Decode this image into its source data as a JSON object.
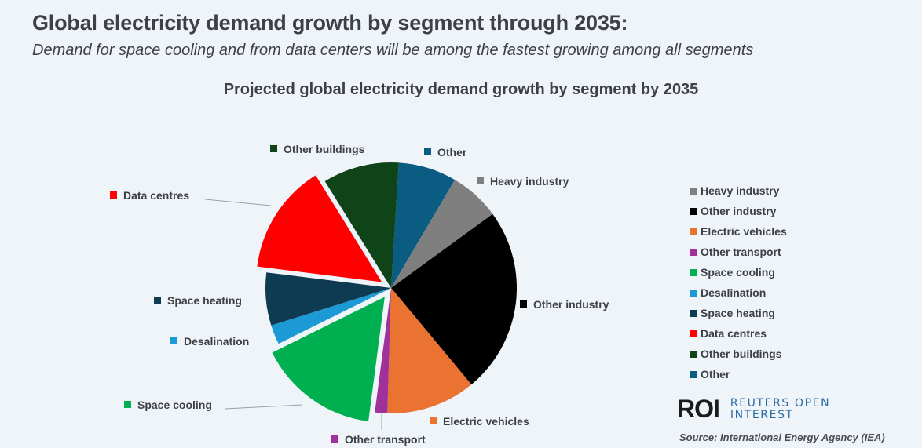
{
  "header": {
    "title": "Global electricity demand growth by segment through 2035:",
    "subtitle": "Demand for space cooling and from data centers will be among the fastest growing among all segments"
  },
  "chart_data": {
    "type": "pie",
    "title": "Projected global electricity demand growth by segment by 2035",
    "unit": "percent of total demand growth (estimated from slice angles)",
    "start": "12 o'clock, clockwise",
    "legend_position": "right",
    "slices": [
      {
        "label": "Other",
        "value": 7.5,
        "color": "#0b5c82",
        "exploded": false
      },
      {
        "label": "Heavy industry",
        "value": 6.5,
        "color": "#7f7f7f",
        "exploded": false
      },
      {
        "label": "Other industry",
        "value": 24.0,
        "color": "#000000",
        "exploded": false
      },
      {
        "label": "Electric vehicles",
        "value": 11.5,
        "color": "#eb7332",
        "exploded": false
      },
      {
        "label": "Other transport",
        "value": 1.6,
        "color": "#a0309a",
        "exploded": false
      },
      {
        "label": "Space cooling",
        "value": 15.6,
        "color": "#00b050",
        "exploded": true
      },
      {
        "label": "Desalination",
        "value": 2.5,
        "color": "#1b9ad6",
        "exploded": false
      },
      {
        "label": "Space heating",
        "value": 6.8,
        "color": "#0e3a52",
        "exploded": false
      },
      {
        "label": "Data centres",
        "value": 14.2,
        "color": "#ff0000",
        "exploded": true
      },
      {
        "label": "Other buildings",
        "value": 9.8,
        "color": "#0f4418",
        "exploded": false
      }
    ],
    "legend": [
      "Heavy industry",
      "Other industry",
      "Electric vehicles",
      "Other transport",
      "Space cooling",
      "Desalination",
      "Space heating",
      "Data centres",
      "Other buildings",
      "Other"
    ]
  },
  "branding": {
    "logo_mark": "ROI",
    "logo_line1": "REUTERS OPEN",
    "logo_line2": "INTEREST"
  },
  "source": "Source: International Energy Agency (IEA)"
}
